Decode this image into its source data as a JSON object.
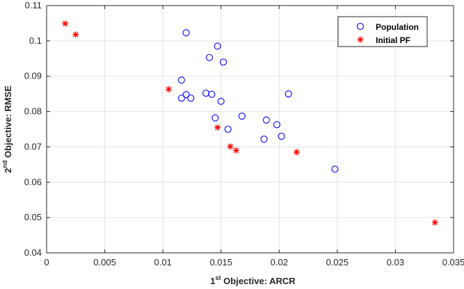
{
  "chart_data": {
    "type": "scatter",
    "title": "",
    "xlabel": {
      "sup": "st",
      "base": "1",
      "rest": " Objective: ARCR"
    },
    "ylabel": {
      "sup": "nd",
      "base": "2",
      "rest": " Objective: RMSE"
    },
    "xlim": [
      0,
      0.035
    ],
    "ylim": [
      0.04,
      0.11
    ],
    "xticks": [
      0,
      0.005,
      0.01,
      0.015,
      0.02,
      0.025,
      0.03,
      0.035
    ],
    "xtick_labels": [
      "0",
      "0.005",
      "0.01",
      "0.015",
      "0.02",
      "0.025",
      "0.03",
      "0.035"
    ],
    "yticks": [
      0.04,
      0.05,
      0.06,
      0.07,
      0.08,
      0.09,
      0.1,
      0.11
    ],
    "ytick_labels": [
      "0.04",
      "0.05",
      "0.06",
      "0.07",
      "0.08",
      "0.09",
      "0.1",
      "0.11"
    ],
    "grid": true,
    "legend_position": "top-right",
    "series": [
      {
        "name": "Population",
        "marker": "circle-open",
        "color": "#0000ff",
        "points": [
          [
            0.012,
            0.1023
          ],
          [
            0.0147,
            0.0985
          ],
          [
            0.014,
            0.0953
          ],
          [
            0.0152,
            0.094
          ],
          [
            0.0116,
            0.0889
          ],
          [
            0.0208,
            0.085
          ],
          [
            0.0137,
            0.0852
          ],
          [
            0.0142,
            0.0849
          ],
          [
            0.012,
            0.0848
          ],
          [
            0.0116,
            0.0838
          ],
          [
            0.0124,
            0.0838
          ],
          [
            0.015,
            0.0829
          ],
          [
            0.0168,
            0.0787
          ],
          [
            0.0145,
            0.0782
          ],
          [
            0.0189,
            0.0776
          ],
          [
            0.0198,
            0.0763
          ],
          [
            0.0156,
            0.075
          ],
          [
            0.0202,
            0.073
          ],
          [
            0.0187,
            0.0722
          ],
          [
            0.0248,
            0.0637
          ]
        ]
      },
      {
        "name": "Initial PF",
        "marker": "asterisk",
        "color": "#ff0000",
        "points": [
          [
            0.0016,
            0.1049
          ],
          [
            0.0025,
            0.1018
          ],
          [
            0.0105,
            0.0863
          ],
          [
            0.0147,
            0.0755
          ],
          [
            0.0158,
            0.0701
          ],
          [
            0.0163,
            0.069
          ],
          [
            0.0215,
            0.0685
          ],
          [
            0.0334,
            0.0486
          ]
        ]
      }
    ]
  }
}
